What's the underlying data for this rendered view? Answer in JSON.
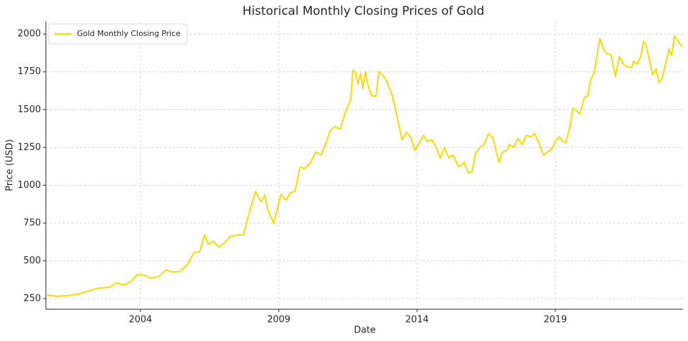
{
  "chart_data": {
    "type": "line",
    "title": "Historical Monthly Closing Prices of Gold",
    "xlabel": "Date",
    "ylabel": "Price (USD)",
    "x": [
      2000.61,
      2000.96,
      2001.35,
      2001.73,
      2002.11,
      2002.49,
      2002.88,
      2003.13,
      2003.39,
      2003.64,
      2003.9,
      2004.15,
      2004.36,
      2004.66,
      2004.92,
      2005.17,
      2005.43,
      2005.68,
      2005.94,
      2006.14,
      2006.32,
      2006.45,
      2006.63,
      2006.83,
      2007.04,
      2007.24,
      2007.47,
      2007.72,
      2007.85,
      2007.98,
      2008.16,
      2008.36,
      2008.49,
      2008.62,
      2008.82,
      2009.08,
      2009.26,
      2009.43,
      2009.59,
      2009.77,
      2009.94,
      2010.15,
      2010.35,
      2010.53,
      2010.71,
      2010.86,
      2011.04,
      2011.22,
      2011.42,
      2011.6,
      2011.68,
      2011.78,
      2011.86,
      2011.96,
      2012.04,
      2012.14,
      2012.24,
      2012.37,
      2012.52,
      2012.62,
      2012.75,
      2012.9,
      2013.11,
      2013.26,
      2013.46,
      2013.62,
      2013.77,
      2013.92,
      2014.08,
      2014.23,
      2014.38,
      2014.54,
      2014.69,
      2014.84,
      2014.99,
      2015.15,
      2015.3,
      2015.51,
      2015.71,
      2015.86,
      2015.99,
      2016.12,
      2016.27,
      2016.42,
      2016.58,
      2016.73,
      2016.83,
      2016.96,
      2017.09,
      2017.24,
      2017.34,
      2017.5,
      2017.65,
      2017.8,
      2017.95,
      2018.11,
      2018.26,
      2018.41,
      2018.57,
      2018.72,
      2018.87,
      2019.03,
      2019.15,
      2019.28,
      2019.38,
      2019.54,
      2019.64,
      2019.79,
      2019.89,
      2020.05,
      2020.17,
      2020.28,
      2020.4,
      2020.51,
      2020.61,
      2020.74,
      2020.86,
      2021.02,
      2021.17,
      2021.32,
      2021.47,
      2021.63,
      2021.76,
      2021.83,
      2021.96,
      2022.09,
      2022.19,
      2022.29,
      2022.39,
      2022.52,
      2022.65,
      2022.75,
      2022.85,
      2023.01,
      2023.11,
      2023.21,
      2023.31,
      2023.41,
      2023.49,
      2023.59
    ],
    "series": [
      {
        "name": "Gold Monthly Closing Price",
        "color": "#ffd700",
        "values": [
          275,
          265,
          270,
          280,
          300,
          320,
          325,
          355,
          340,
          360,
          410,
          405,
          385,
          395,
          440,
          425,
          430,
          470,
          555,
          560,
          670,
          610,
          630,
          590,
          620,
          660,
          670,
          670,
          760,
          850,
          960,
          890,
          935,
          830,
          750,
          940,
          900,
          950,
          960,
          1120,
          1110,
          1150,
          1220,
          1200,
          1280,
          1360,
          1390,
          1370,
          1490,
          1560,
          1760,
          1750,
          1670,
          1740,
          1640,
          1750,
          1650,
          1590,
          1590,
          1750,
          1730,
          1690,
          1590,
          1470,
          1300,
          1350,
          1320,
          1230,
          1280,
          1330,
          1290,
          1300,
          1250,
          1180,
          1250,
          1180,
          1200,
          1120,
          1150,
          1080,
          1090,
          1210,
          1250,
          1270,
          1340,
          1320,
          1250,
          1150,
          1220,
          1230,
          1270,
          1250,
          1310,
          1270,
          1330,
          1320,
          1340,
          1280,
          1200,
          1220,
          1240,
          1300,
          1320,
          1290,
          1280,
          1400,
          1510,
          1490,
          1470,
          1580,
          1590,
          1700,
          1740,
          1860,
          1970,
          1900,
          1870,
          1860,
          1720,
          1850,
          1800,
          1780,
          1780,
          1820,
          1800,
          1850,
          1950,
          1920,
          1840,
          1730,
          1770,
          1680,
          1700,
          1820,
          1900,
          1860,
          1990,
          1960,
          1940,
          1920
        ]
      }
    ],
    "xlim": [
      2000.58,
      2023.62
    ],
    "xticks": [
      2004,
      2009,
      2014,
      2019
    ],
    "ylim": [
      180,
      2085
    ],
    "yticks": [
      250,
      500,
      750,
      1000,
      1250,
      1500,
      1750,
      2000
    ],
    "grid": true,
    "legend": "upper left"
  }
}
